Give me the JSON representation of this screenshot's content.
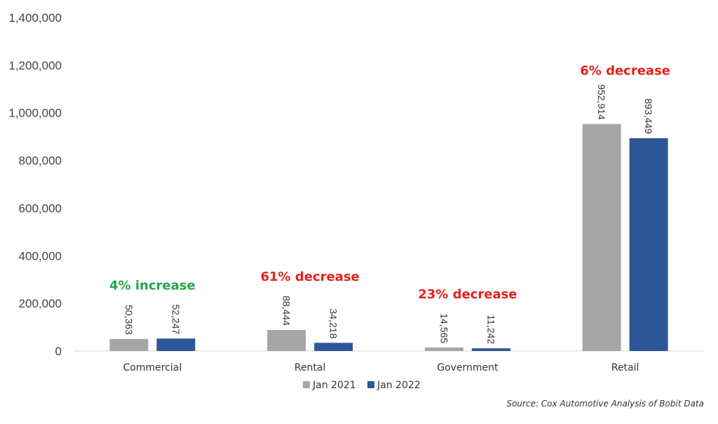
{
  "chart_data": {
    "type": "bar",
    "categories": [
      "Commercial",
      "Rental",
      "Government",
      "Retail"
    ],
    "series": [
      {
        "name": "Jan 2021",
        "values": [
          50363,
          88444,
          14565,
          952914
        ],
        "labels": [
          "50,363",
          "88,444",
          "14,565",
          "952,914"
        ]
      },
      {
        "name": "Jan 2022",
        "values": [
          52247,
          34218,
          11242,
          893449
        ],
        "labels": [
          "52,247",
          "34,218",
          "11,242",
          "893,449"
        ]
      }
    ],
    "ylim": [
      0,
      1400000
    ],
    "yticks": [
      0,
      200000,
      400000,
      600000,
      800000,
      1000000,
      1200000,
      1400000
    ],
    "ytick_labels": [
      "0",
      "200,000",
      "400,000",
      "600,000",
      "800,000",
      "1,000,000",
      "1,200,000",
      "1,400,000"
    ],
    "annotations": [
      "4% increase",
      "61% decrease",
      "23% decrease",
      "6% decrease"
    ],
    "annotation_colors": [
      "#21a547",
      "#e3211c",
      "#e3211c",
      "#e3211c"
    ],
    "colors": [
      "#a6a6a6",
      "#2e5596"
    ],
    "legend_position": "bottom",
    "grid": false,
    "xlabel": "",
    "ylabel": ""
  },
  "source": "Source: Cox Automotive Analysis of Bobit Data"
}
